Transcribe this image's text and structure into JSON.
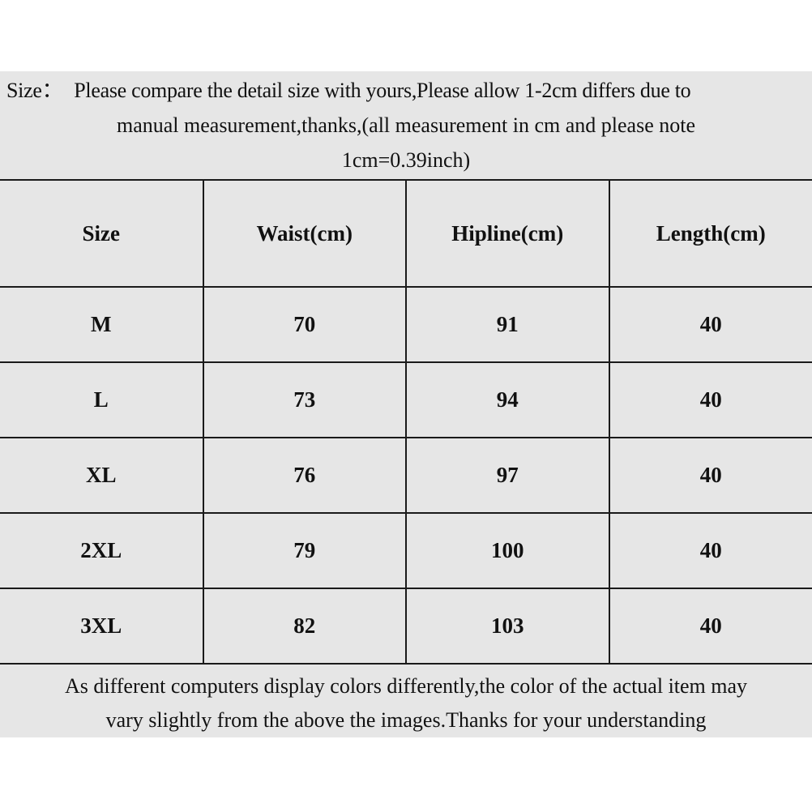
{
  "intro": {
    "label": "Size：",
    "line1": "Please compare the detail size with yours,Please allow 1-2cm differs due to",
    "line2": "manual measurement,thanks,(all measurement in cm and please note",
    "line3": "1cm=0.39inch)"
  },
  "table": {
    "headers": [
      "Size",
      "Waist(cm)",
      "Hipline(cm)",
      "Length(cm)"
    ],
    "rows": [
      [
        "M",
        "70",
        "91",
        "40"
      ],
      [
        "L",
        "73",
        "94",
        "40"
      ],
      [
        "XL",
        "76",
        "97",
        "40"
      ],
      [
        "2XL",
        "79",
        "100",
        "40"
      ],
      [
        "3XL",
        "82",
        "103",
        "40"
      ]
    ]
  },
  "footer": {
    "line1": "As different computers display colors differently,the color of the actual item may",
    "line2": "vary slightly from the above the images.Thanks for your understanding"
  },
  "colors": {
    "panel": "#e6e6e6",
    "border": "#1a1a1a"
  }
}
